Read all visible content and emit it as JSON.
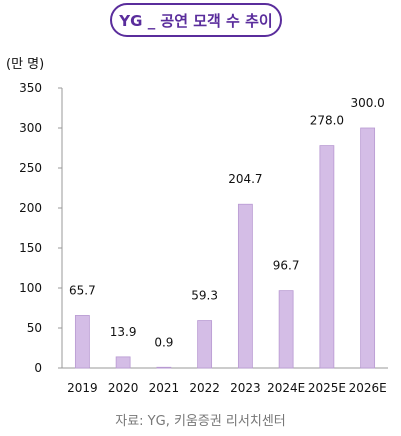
{
  "header": {
    "title": "YG _ 공연 모객 수 추이"
  },
  "unit_label": "(만 명)",
  "source": "자료: YG, 키움증권 리서치센터",
  "chart_data": {
    "type": "bar",
    "title": "YG _ 공연 모객 수 추이",
    "ylabel": "(만 명)",
    "xlabel": "",
    "categories": [
      "2019",
      "2020",
      "2021",
      "2022",
      "2023",
      "2024E",
      "2025E",
      "2026E"
    ],
    "values": [
      65.7,
      13.9,
      0.9,
      59.3,
      204.7,
      96.7,
      278.0,
      300.0
    ],
    "value_labels": [
      "65.7",
      "13.9",
      "0.9",
      "59.3",
      "204.7",
      "96.7",
      "278.0",
      "300.0"
    ],
    "ylim": [
      0,
      350
    ],
    "yticks": [
      0,
      50,
      100,
      150,
      200,
      250,
      300,
      350
    ],
    "grid": false,
    "legend": "none",
    "colors": {
      "bar_fill": "#d4bde6",
      "bar_edge": "#b89ad2",
      "accent": "#5a2d9c",
      "axis": "#999999"
    }
  }
}
